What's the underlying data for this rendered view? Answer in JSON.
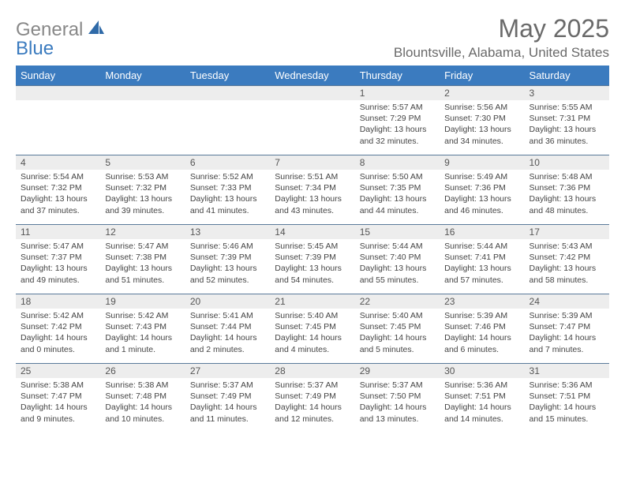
{
  "brand": {
    "partA": "General",
    "partB": "Blue"
  },
  "title": "May 2025",
  "location": "Blountsville, Alabama, United States",
  "colors": {
    "header_bg": "#3b7bbf",
    "header_text": "#ffffff",
    "daynum_bg": "#ededed",
    "text_muted": "#6a6a6a",
    "text_body": "#444444",
    "row_border": "#5a7a9a"
  },
  "dayNames": [
    "Sunday",
    "Monday",
    "Tuesday",
    "Wednesday",
    "Thursday",
    "Friday",
    "Saturday"
  ],
  "weeks": [
    [
      null,
      null,
      null,
      null,
      {
        "n": "1",
        "sr": "5:57 AM",
        "ss": "7:29 PM",
        "dl": "13 hours and 32 minutes."
      },
      {
        "n": "2",
        "sr": "5:56 AM",
        "ss": "7:30 PM",
        "dl": "13 hours and 34 minutes."
      },
      {
        "n": "3",
        "sr": "5:55 AM",
        "ss": "7:31 PM",
        "dl": "13 hours and 36 minutes."
      }
    ],
    [
      {
        "n": "4",
        "sr": "5:54 AM",
        "ss": "7:32 PM",
        "dl": "13 hours and 37 minutes."
      },
      {
        "n": "5",
        "sr": "5:53 AM",
        "ss": "7:32 PM",
        "dl": "13 hours and 39 minutes."
      },
      {
        "n": "6",
        "sr": "5:52 AM",
        "ss": "7:33 PM",
        "dl": "13 hours and 41 minutes."
      },
      {
        "n": "7",
        "sr": "5:51 AM",
        "ss": "7:34 PM",
        "dl": "13 hours and 43 minutes."
      },
      {
        "n": "8",
        "sr": "5:50 AM",
        "ss": "7:35 PM",
        "dl": "13 hours and 44 minutes."
      },
      {
        "n": "9",
        "sr": "5:49 AM",
        "ss": "7:36 PM",
        "dl": "13 hours and 46 minutes."
      },
      {
        "n": "10",
        "sr": "5:48 AM",
        "ss": "7:36 PM",
        "dl": "13 hours and 48 minutes."
      }
    ],
    [
      {
        "n": "11",
        "sr": "5:47 AM",
        "ss": "7:37 PM",
        "dl": "13 hours and 49 minutes."
      },
      {
        "n": "12",
        "sr": "5:47 AM",
        "ss": "7:38 PM",
        "dl": "13 hours and 51 minutes."
      },
      {
        "n": "13",
        "sr": "5:46 AM",
        "ss": "7:39 PM",
        "dl": "13 hours and 52 minutes."
      },
      {
        "n": "14",
        "sr": "5:45 AM",
        "ss": "7:39 PM",
        "dl": "13 hours and 54 minutes."
      },
      {
        "n": "15",
        "sr": "5:44 AM",
        "ss": "7:40 PM",
        "dl": "13 hours and 55 minutes."
      },
      {
        "n": "16",
        "sr": "5:44 AM",
        "ss": "7:41 PM",
        "dl": "13 hours and 57 minutes."
      },
      {
        "n": "17",
        "sr": "5:43 AM",
        "ss": "7:42 PM",
        "dl": "13 hours and 58 minutes."
      }
    ],
    [
      {
        "n": "18",
        "sr": "5:42 AM",
        "ss": "7:42 PM",
        "dl": "14 hours and 0 minutes."
      },
      {
        "n": "19",
        "sr": "5:42 AM",
        "ss": "7:43 PM",
        "dl": "14 hours and 1 minute."
      },
      {
        "n": "20",
        "sr": "5:41 AM",
        "ss": "7:44 PM",
        "dl": "14 hours and 2 minutes."
      },
      {
        "n": "21",
        "sr": "5:40 AM",
        "ss": "7:45 PM",
        "dl": "14 hours and 4 minutes."
      },
      {
        "n": "22",
        "sr": "5:40 AM",
        "ss": "7:45 PM",
        "dl": "14 hours and 5 minutes."
      },
      {
        "n": "23",
        "sr": "5:39 AM",
        "ss": "7:46 PM",
        "dl": "14 hours and 6 minutes."
      },
      {
        "n": "24",
        "sr": "5:39 AM",
        "ss": "7:47 PM",
        "dl": "14 hours and 7 minutes."
      }
    ],
    [
      {
        "n": "25",
        "sr": "5:38 AM",
        "ss": "7:47 PM",
        "dl": "14 hours and 9 minutes."
      },
      {
        "n": "26",
        "sr": "5:38 AM",
        "ss": "7:48 PM",
        "dl": "14 hours and 10 minutes."
      },
      {
        "n": "27",
        "sr": "5:37 AM",
        "ss": "7:49 PM",
        "dl": "14 hours and 11 minutes."
      },
      {
        "n": "28",
        "sr": "5:37 AM",
        "ss": "7:49 PM",
        "dl": "14 hours and 12 minutes."
      },
      {
        "n": "29",
        "sr": "5:37 AM",
        "ss": "7:50 PM",
        "dl": "14 hours and 13 minutes."
      },
      {
        "n": "30",
        "sr": "5:36 AM",
        "ss": "7:51 PM",
        "dl": "14 hours and 14 minutes."
      },
      {
        "n": "31",
        "sr": "5:36 AM",
        "ss": "7:51 PM",
        "dl": "14 hours and 15 minutes."
      }
    ]
  ],
  "labels": {
    "sunrise": "Sunrise:",
    "sunset": "Sunset:",
    "daylight": "Daylight:"
  }
}
